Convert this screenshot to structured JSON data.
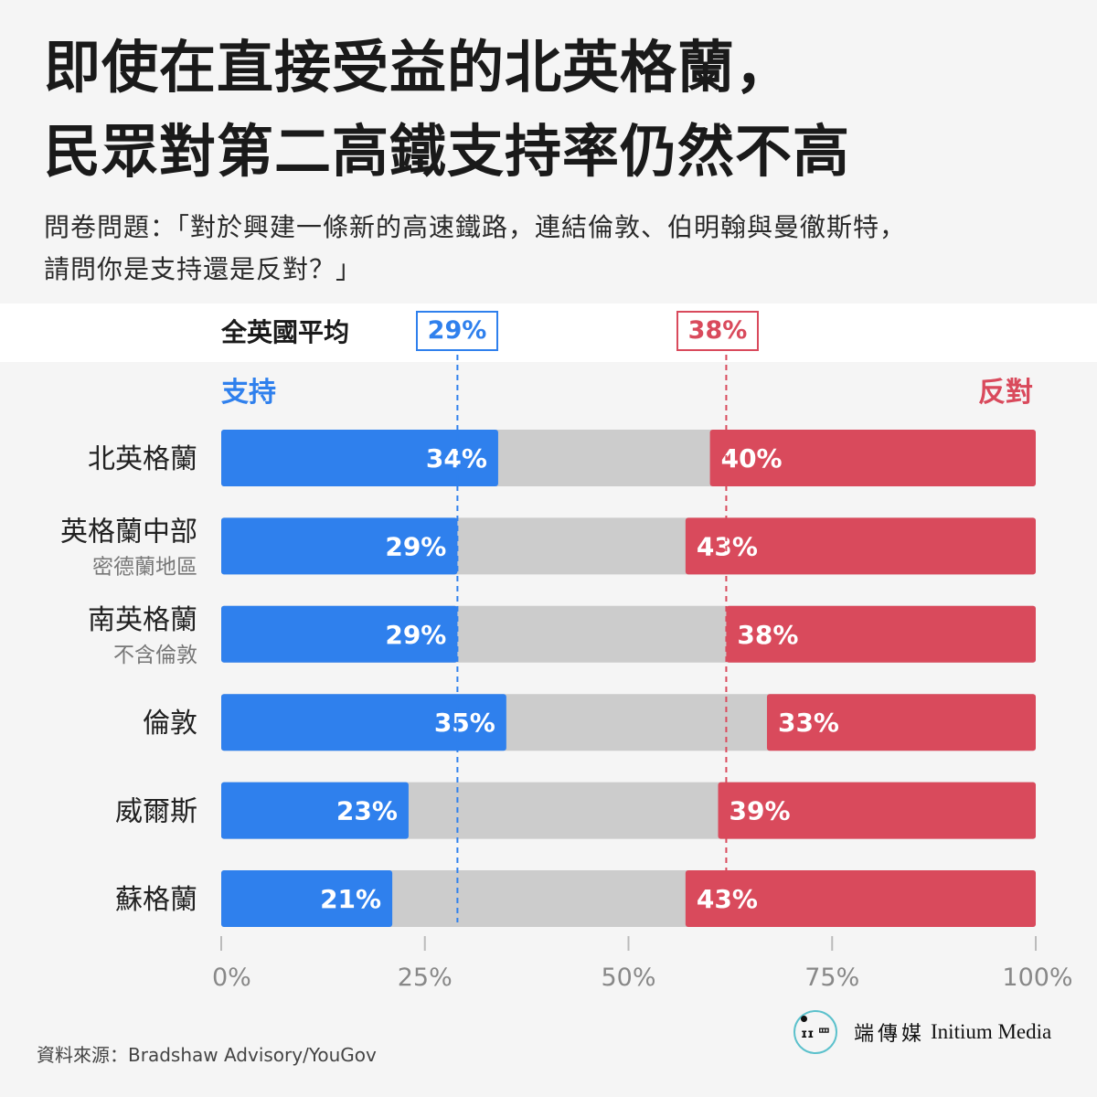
{
  "title_lines": [
    "即使在直接受益的北英格蘭，",
    "民眾對第二高鐵支持率仍然不高"
  ],
  "question_lines": [
    "問卷問題：「對於興建一條新的高速鐵路，連結倫敦、伯明翰與曼徹斯特，",
    "請問你是支持還是反對？」"
  ],
  "average": {
    "label": "全英國平均",
    "support": "29%",
    "oppose": "38%"
  },
  "side_labels": {
    "support": "支持",
    "oppose": "反對"
  },
  "colors": {
    "support": "#2f80ed",
    "oppose": "#d94a5c",
    "neutral": "#cccccc",
    "grid": "#bbbbbb",
    "tick_text": "#888888"
  },
  "chart_data": {
    "type": "bar",
    "orientation": "horizontal",
    "stacked": true,
    "categories": [
      {
        "name": "北英格蘭",
        "sub": ""
      },
      {
        "name": "英格蘭中部",
        "sub": "密德蘭地區"
      },
      {
        "name": "南英格蘭",
        "sub": "不含倫敦"
      },
      {
        "name": "倫敦",
        "sub": ""
      },
      {
        "name": "威爾斯",
        "sub": ""
      },
      {
        "name": "蘇格蘭",
        "sub": ""
      }
    ],
    "series": [
      {
        "name": "支持",
        "values": [
          34,
          29,
          29,
          35,
          23,
          21
        ]
      },
      {
        "name": "反對",
        "values": [
          40,
          43,
          38,
          33,
          39,
          43
        ]
      }
    ],
    "reference_lines": [
      {
        "series": "支持",
        "value": 29
      },
      {
        "series": "反對",
        "value": 38
      }
    ],
    "x_ticks": [
      "0%",
      "25%",
      "50%",
      "75%",
      "100%"
    ],
    "xlim": [
      0,
      100
    ]
  },
  "source": "資料來源：Bradshaw Advisory/YouGov",
  "brand": {
    "logo_text": "ɪɪ 罒",
    "name_cn": "端傳媒",
    "name_en": "Initium Media"
  }
}
